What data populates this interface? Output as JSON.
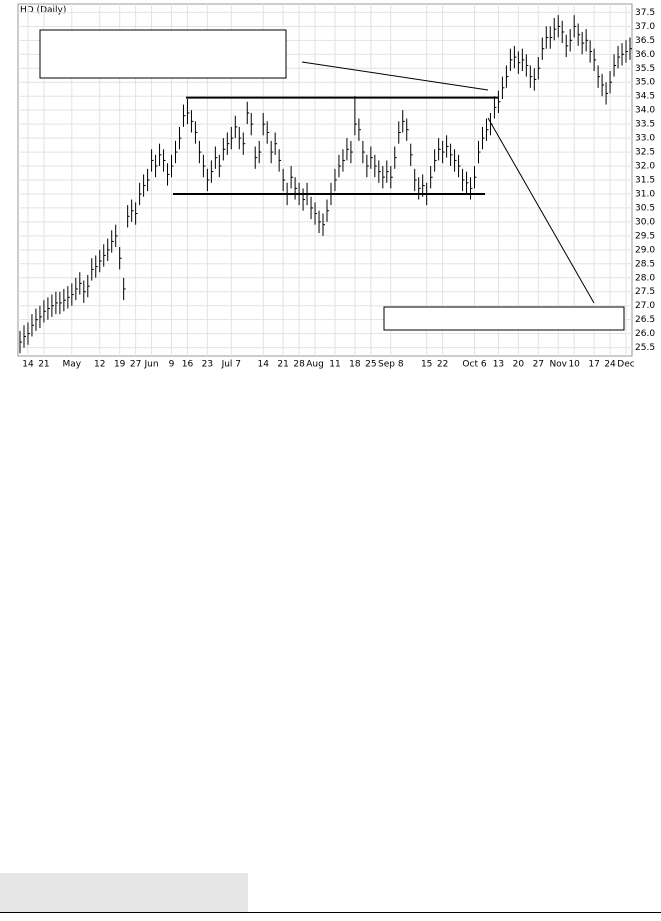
{
  "chart_data": {
    "type": "ohlc",
    "title": "HD (Daily)",
    "categories": [
      null,
      null,
      "14",
      null,
      null,
      null,
      "21",
      null,
      null,
      null,
      null,
      null,
      null,
      "May",
      null,
      null,
      null,
      null,
      null,
      null,
      "12",
      null,
      null,
      null,
      null,
      "19",
      null,
      null,
      null,
      "27",
      null,
      null,
      null,
      "Jun",
      null,
      null,
      null,
      null,
      "9",
      null,
      null,
      null,
      "16",
      null,
      null,
      null,
      null,
      "23",
      null,
      null,
      null,
      null,
      null,
      "Jul 7",
      null,
      null,
      null,
      null,
      null,
      null,
      null,
      "14",
      null,
      null,
      null,
      null,
      "21",
      null,
      null,
      null,
      "28",
      null,
      null,
      null,
      "Aug",
      null,
      null,
      null,
      null,
      "11",
      null,
      null,
      null,
      null,
      "18",
      null,
      null,
      null,
      "25",
      null,
      null,
      null,
      null,
      "Sep 8",
      null,
      null,
      null,
      null,
      null,
      null,
      null,
      null,
      "15",
      null,
      null,
      null,
      "22",
      null,
      null,
      null,
      null,
      null,
      null,
      null,
      "Oct 6",
      null,
      null,
      null,
      null,
      null,
      "13",
      null,
      null,
      null,
      null,
      "20",
      null,
      null,
      null,
      null,
      "27",
      null,
      null,
      null,
      null,
      "Nov",
      null,
      null,
      null,
      "10",
      null,
      null,
      null,
      null,
      "17",
      null,
      null,
      null,
      "24",
      null,
      null,
      null,
      "Dec",
      null
    ],
    "close": [
      25.7,
      25.9,
      26.0,
      26.3,
      26.5,
      26.6,
      26.8,
      26.9,
      27.0,
      27.1,
      27.1,
      27.2,
      27.3,
      27.4,
      27.6,
      27.8,
      27.5,
      27.7,
      28.3,
      28.4,
      28.6,
      28.8,
      29.0,
      29.3,
      29.5,
      28.7,
      27.6,
      30.2,
      30.4,
      30.3,
      31.0,
      31.3,
      31.5,
      32.2,
      32.0,
      32.4,
      32.2,
      31.7,
      32.0,
      32.5,
      33.0,
      33.8,
      33.9,
      33.6,
      33.2,
      32.5,
      32.0,
      31.5,
      31.8,
      32.3,
      32.0,
      32.6,
      32.8,
      33.0,
      33.4,
      33.0,
      32.8,
      33.9,
      33.5,
      32.3,
      32.5,
      33.5,
      33.2,
      32.5,
      32.8,
      32.2,
      31.5,
      31.0,
      31.6,
      31.2,
      31.0,
      30.8,
      31.0,
      30.5,
      30.3,
      30.0,
      29.9,
      30.4,
      31.0,
      31.5,
      32.0,
      32.2,
      32.6,
      32.5,
      33.5,
      33.3,
      32.5,
      32.0,
      32.3,
      32.0,
      31.8,
      31.6,
      31.8,
      31.6,
      32.3,
      33.2,
      33.6,
      33.3,
      32.4,
      31.5,
      31.2,
      31.3,
      31.0,
      31.6,
      32.2,
      32.6,
      32.5,
      32.7,
      32.4,
      32.2,
      32.0,
      31.5,
      31.4,
      31.2,
      31.6,
      32.5,
      33.0,
      33.3,
      33.5,
      34.1,
      34.3,
      34.8,
      35.2,
      35.8,
      35.9,
      35.7,
      35.8,
      35.6,
      35.2,
      35.1,
      35.5,
      36.2,
      36.6,
      36.6,
      36.9,
      37.0,
      36.8,
      36.3,
      36.5,
      37.0,
      36.7,
      36.4,
      36.5,
      36.1,
      35.8,
      35.2,
      34.9,
      34.6,
      35.0,
      35.6,
      35.9,
      36.0,
      36.1,
      36.2
    ],
    "high": [
      26.1,
      26.3,
      26.4,
      26.7,
      26.9,
      27.0,
      27.2,
      27.3,
      27.4,
      27.5,
      27.5,
      27.6,
      27.7,
      27.8,
      28.0,
      28.2,
      27.9,
      28.1,
      28.7,
      28.8,
      29.0,
      29.2,
      29.4,
      29.7,
      29.9,
      29.1,
      28.0,
      30.6,
      30.8,
      30.7,
      31.4,
      31.7,
      31.9,
      32.6,
      32.4,
      32.8,
      32.6,
      32.1,
      32.4,
      32.9,
      33.4,
      34.2,
      34.4,
      34.0,
      33.6,
      32.9,
      32.4,
      31.9,
      32.2,
      32.7,
      32.4,
      33.0,
      33.2,
      33.4,
      33.8,
      33.4,
      33.2,
      34.3,
      33.9,
      32.7,
      32.9,
      33.9,
      33.6,
      32.9,
      33.2,
      32.6,
      31.9,
      31.4,
      32.0,
      31.6,
      31.4,
      31.2,
      31.4,
      30.9,
      30.7,
      30.4,
      30.3,
      30.8,
      31.4,
      31.9,
      32.4,
      32.6,
      33.0,
      32.9,
      34.5,
      33.7,
      32.9,
      32.4,
      32.7,
      32.4,
      32.2,
      32.0,
      32.2,
      32.0,
      32.7,
      33.6,
      34.0,
      33.7,
      32.8,
      31.9,
      31.6,
      31.7,
      31.4,
      32.0,
      32.6,
      33.0,
      32.9,
      33.1,
      32.8,
      32.6,
      32.4,
      31.9,
      31.8,
      31.6,
      32.0,
      32.9,
      33.4,
      33.7,
      33.9,
      34.5,
      34.7,
      35.2,
      35.6,
      36.2,
      36.3,
      36.1,
      36.2,
      36.0,
      35.6,
      35.5,
      35.9,
      36.6,
      37.0,
      37.0,
      37.3,
      37.4,
      37.2,
      36.7,
      36.9,
      37.4,
      37.1,
      36.8,
      36.9,
      36.5,
      36.2,
      35.6,
      35.3,
      35.0,
      35.4,
      36.0,
      36.3,
      36.4,
      36.5,
      36.6
    ],
    "low": [
      25.3,
      25.5,
      25.6,
      25.9,
      26.1,
      26.2,
      26.4,
      26.5,
      26.6,
      26.7,
      26.7,
      26.8,
      26.9,
      27.0,
      27.2,
      27.4,
      27.1,
      27.3,
      27.9,
      28.0,
      28.2,
      28.4,
      28.6,
      28.9,
      29.1,
      28.3,
      27.2,
      29.8,
      30.0,
      29.9,
      30.6,
      30.9,
      31.1,
      31.8,
      31.6,
      32.0,
      31.8,
      31.3,
      31.6,
      32.1,
      32.6,
      33.4,
      33.5,
      33.2,
      32.8,
      32.1,
      31.6,
      31.1,
      31.4,
      31.9,
      31.6,
      32.2,
      32.4,
      32.6,
      33.0,
      32.6,
      32.4,
      33.5,
      33.1,
      31.9,
      32.1,
      33.1,
      32.8,
      32.1,
      32.4,
      31.8,
      31.1,
      30.6,
      31.2,
      30.8,
      30.6,
      30.4,
      30.6,
      30.1,
      29.9,
      29.6,
      29.5,
      30.0,
      30.6,
      31.1,
      31.6,
      31.8,
      32.2,
      32.1,
      33.1,
      32.9,
      32.1,
      31.6,
      31.9,
      31.6,
      31.4,
      31.2,
      31.4,
      31.2,
      31.9,
      32.8,
      33.2,
      32.9,
      32.0,
      31.1,
      30.8,
      30.9,
      30.6,
      31.2,
      31.8,
      32.2,
      32.1,
      32.3,
      32.0,
      31.8,
      31.6,
      31.1,
      31.0,
      30.8,
      31.2,
      32.1,
      32.6,
      32.9,
      33.1,
      33.7,
      33.9,
      34.4,
      34.8,
      35.4,
      35.5,
      35.3,
      35.4,
      35.2,
      34.8,
      34.7,
      35.1,
      35.8,
      36.2,
      36.2,
      36.5,
      36.6,
      36.4,
      35.9,
      36.1,
      36.6,
      36.3,
      36.0,
      36.1,
      35.7,
      35.4,
      34.8,
      34.5,
      34.2,
      34.6,
      35.2,
      35.5,
      35.6,
      35.7,
      35.8
    ],
    "lines": [
      34.45,
      31.0
    ],
    "ylim": [
      25.2,
      37.8
    ],
    "yticks": [
      25.5,
      {
        "value": 26,
        "label": "26.0"
      },
      26.5,
      {
        "value": 27,
        "label": "27.0"
      },
      27.5,
      {
        "value": 28,
        "label": "28.0"
      },
      28.5,
      {
        "value": 29,
        "label": "29.0"
      },
      29.5,
      {
        "value": 30,
        "label": "30.0"
      },
      30.5,
      {
        "value": 31,
        "label": "31.0"
      },
      31.5,
      {
        "value": 32,
        "label": "32.0"
      },
      32.5,
      {
        "value": 33,
        "label": "33.0"
      },
      33.5,
      {
        "value": 34,
        "label": "34.0"
      },
      34.5,
      {
        "value": 35,
        "label": "35.0"
      },
      35.5,
      {
        "value": 36,
        "label": "36.0"
      },
      36.5,
      {
        "value": 37,
        "label": "37.0"
      },
      37.5
    ],
    "grid": true,
    "color": "#000000"
  }
}
